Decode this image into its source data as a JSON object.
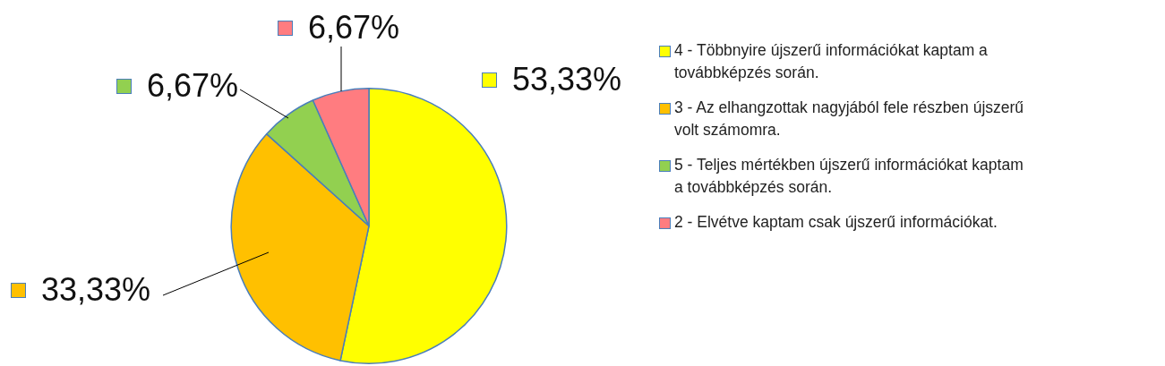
{
  "chart_data": {
    "type": "pie",
    "categories": [
      "4 - Többnyire újszerű információkat kaptam a továbbképzés során.",
      "3 - Az elhangzottak nagyjából fele részben újszerű volt számomra.",
      "5 - Teljes mértékben újszerű információkat kaptam a továbbképzés során.",
      "2 - Elvétve kaptam csak újszerű információkat."
    ],
    "values": [
      53.33,
      33.33,
      6.67,
      6.67
    ],
    "value_labels": [
      "53,33%",
      "33,33%",
      "6,67%",
      "6,67%"
    ],
    "colors": [
      "#ffff00",
      "#ffc000",
      "#92d050",
      "#ff7c80"
    ],
    "legend": "right"
  }
}
